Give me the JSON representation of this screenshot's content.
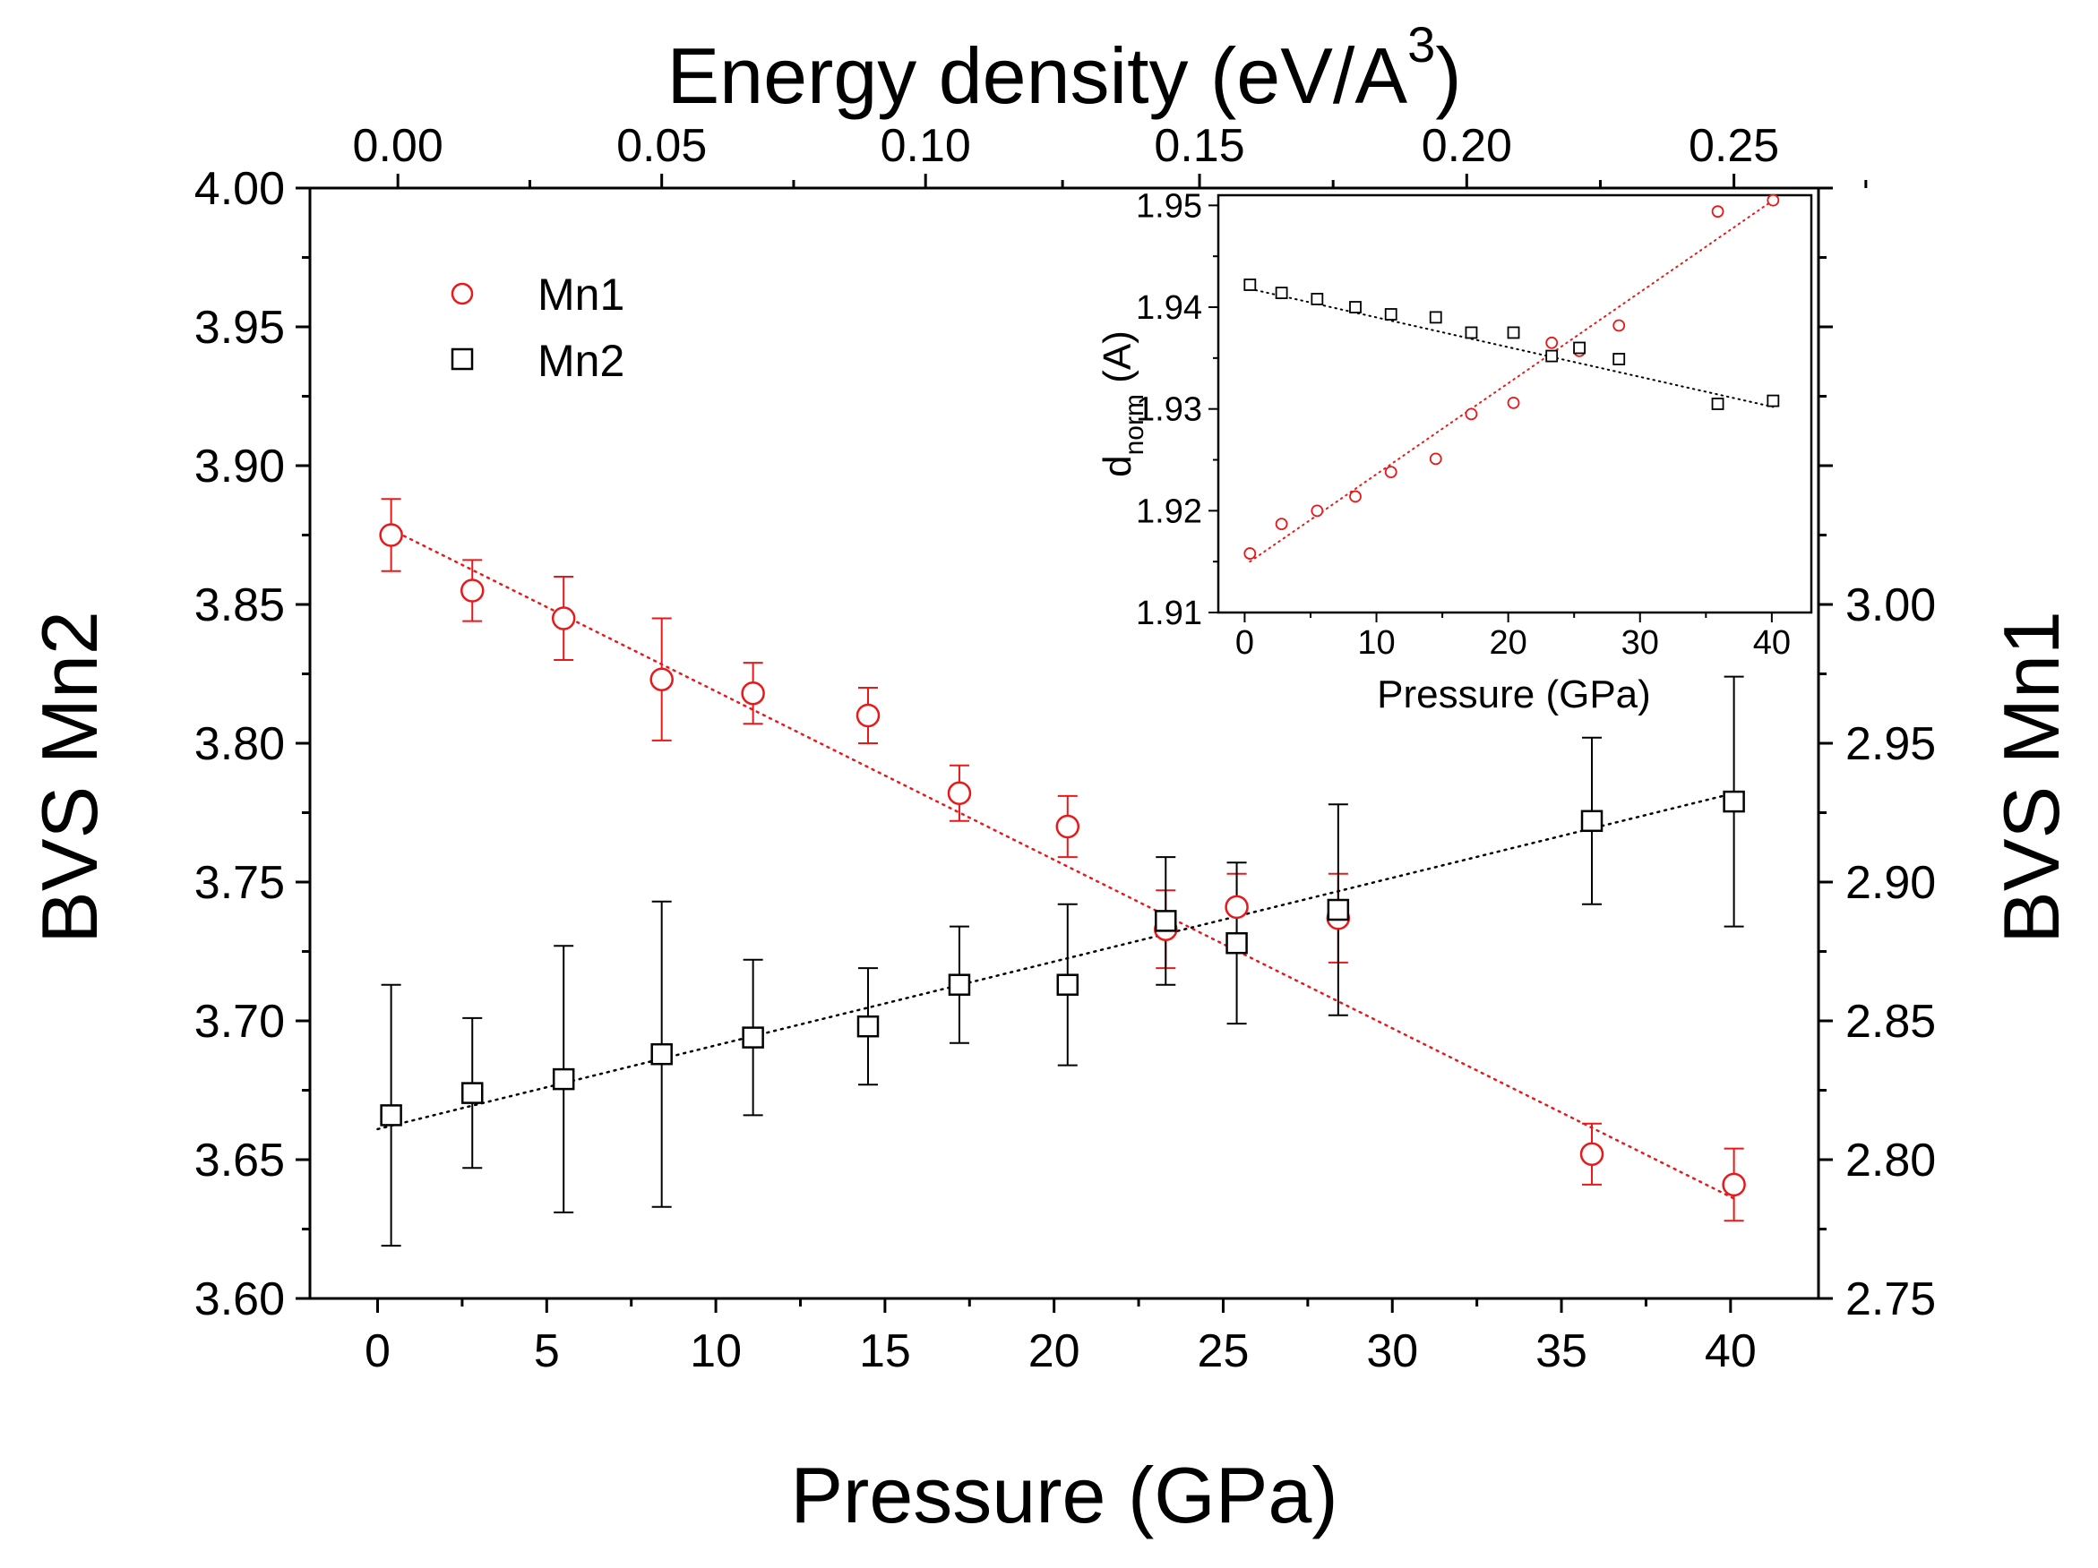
{
  "chart_data": {
    "type": "scatter",
    "main": {
      "xlabel": "Pressure (GPa)",
      "xlim": [
        -2,
        42.6
      ],
      "xticks": [
        "0",
        "5",
        "10",
        "15",
        "20",
        "25",
        "30",
        "35",
        "40"
      ],
      "top_axis": {
        "label_main": "Energy density (eV/A",
        "label_sup": "3",
        "label_close": ")",
        "ticks": [
          "0.00",
          "0.05",
          "0.10",
          "0.15",
          "0.20",
          "0.25"
        ],
        "tick_pressures": [
          0.6,
          8.4,
          16.2,
          24.3,
          32.2,
          40.1
        ]
      },
      "left_axis": {
        "label": "BVS Mn2",
        "lim": [
          3.6,
          4.0
        ],
        "ticks": [
          "3.60",
          "3.65",
          "3.70",
          "3.75",
          "3.80",
          "3.85",
          "3.90",
          "3.95",
          "4.00"
        ]
      },
      "right_axis": {
        "label": "BVS Mn1",
        "lim": [
          2.75,
          3.15
        ],
        "ticks": [
          "2.75",
          "2.80",
          "2.85",
          "2.90",
          "2.95",
          "3.00"
        ]
      },
      "legend": {
        "position": "top-left",
        "entries": [
          "Mn1",
          "Mn2"
        ]
      },
      "series": [
        {
          "name": "Mn1",
          "color": "#e8191a",
          "marker": "circle",
          "axis": "right",
          "x": [
            0.4,
            2.8,
            5.5,
            8.4,
            11.1,
            14.5,
            17.2,
            20.4,
            23.3,
            25.4,
            28.4,
            35.9,
            40.1
          ],
          "y": [
            3.025,
            3.005,
            2.995,
            2.973,
            2.968,
            2.96,
            2.932,
            2.92,
            2.883,
            2.891,
            2.887,
            2.802,
            2.791
          ],
          "err": [
            0.013,
            0.011,
            0.015,
            0.022,
            0.011,
            0.01,
            0.01,
            0.011,
            0.014,
            0.012,
            0.016,
            0.011,
            0.013
          ],
          "fit": {
            "x": [
              0.4,
              40.1
            ],
            "y": [
              3.027,
              2.786
            ]
          }
        },
        {
          "name": "Mn2",
          "color": "#000000",
          "marker": "square",
          "axis": "left",
          "x": [
            0.4,
            2.8,
            5.5,
            8.4,
            11.1,
            14.5,
            17.2,
            20.4,
            23.3,
            25.4,
            28.4,
            35.9,
            40.1
          ],
          "y": [
            3.666,
            3.674,
            3.679,
            3.688,
            3.694,
            3.698,
            3.713,
            3.713,
            3.736,
            3.728,
            3.74,
            3.772,
            3.779
          ],
          "err": [
            0.047,
            0.027,
            0.048,
            0.055,
            0.028,
            0.021,
            0.021,
            0.029,
            0.023,
            0.029,
            0.038,
            0.03,
            0.045
          ],
          "fit": {
            "x": [
              0.0,
              40.1
            ],
            "y": [
              3.661,
              3.782
            ]
          }
        }
      ]
    },
    "inset": {
      "xlabel": "Pressure (GPa)",
      "ylabel_main": "d",
      "ylabel_sub": "norm",
      "ylabel_unit": " (A)",
      "xlim": [
        -2,
        43
      ],
      "ylim": [
        1.91,
        1.951
      ],
      "xticks": [
        "0",
        "10",
        "20",
        "30",
        "40"
      ],
      "yticks": [
        "1.91",
        "1.92",
        "1.93",
        "1.94",
        "1.95"
      ],
      "series": [
        {
          "name": "Mn1",
          "color": "#e8191a",
          "marker": "circle",
          "x": [
            0.4,
            2.8,
            5.5,
            8.4,
            11.1,
            14.5,
            17.2,
            20.4,
            23.3,
            25.4,
            28.4,
            35.9,
            40.1
          ],
          "y": [
            1.9158,
            1.9187,
            1.92,
            1.9214,
            1.9238,
            1.9251,
            1.9295,
            1.9306,
            1.9365,
            1.9357,
            1.9382,
            1.9494,
            1.9505
          ],
          "fit": {
            "x": [
              0.4,
              40.1
            ],
            "y": [
              1.915,
              1.9505
            ]
          }
        },
        {
          "name": "Mn2",
          "color": "#000000",
          "marker": "square",
          "x": [
            0.4,
            2.8,
            5.5,
            8.4,
            11.1,
            14.5,
            17.2,
            20.4,
            23.3,
            25.4,
            28.4,
            35.9,
            40.1
          ],
          "y": [
            1.9422,
            1.9414,
            1.9408,
            1.94,
            1.9393,
            1.939,
            1.9375,
            1.9375,
            1.9352,
            1.936,
            1.9349,
            1.9305,
            1.9308
          ],
          "fit": {
            "x": [
              0.4,
              40.1
            ],
            "y": [
              1.9418,
              1.9302
            ]
          }
        }
      ]
    }
  }
}
